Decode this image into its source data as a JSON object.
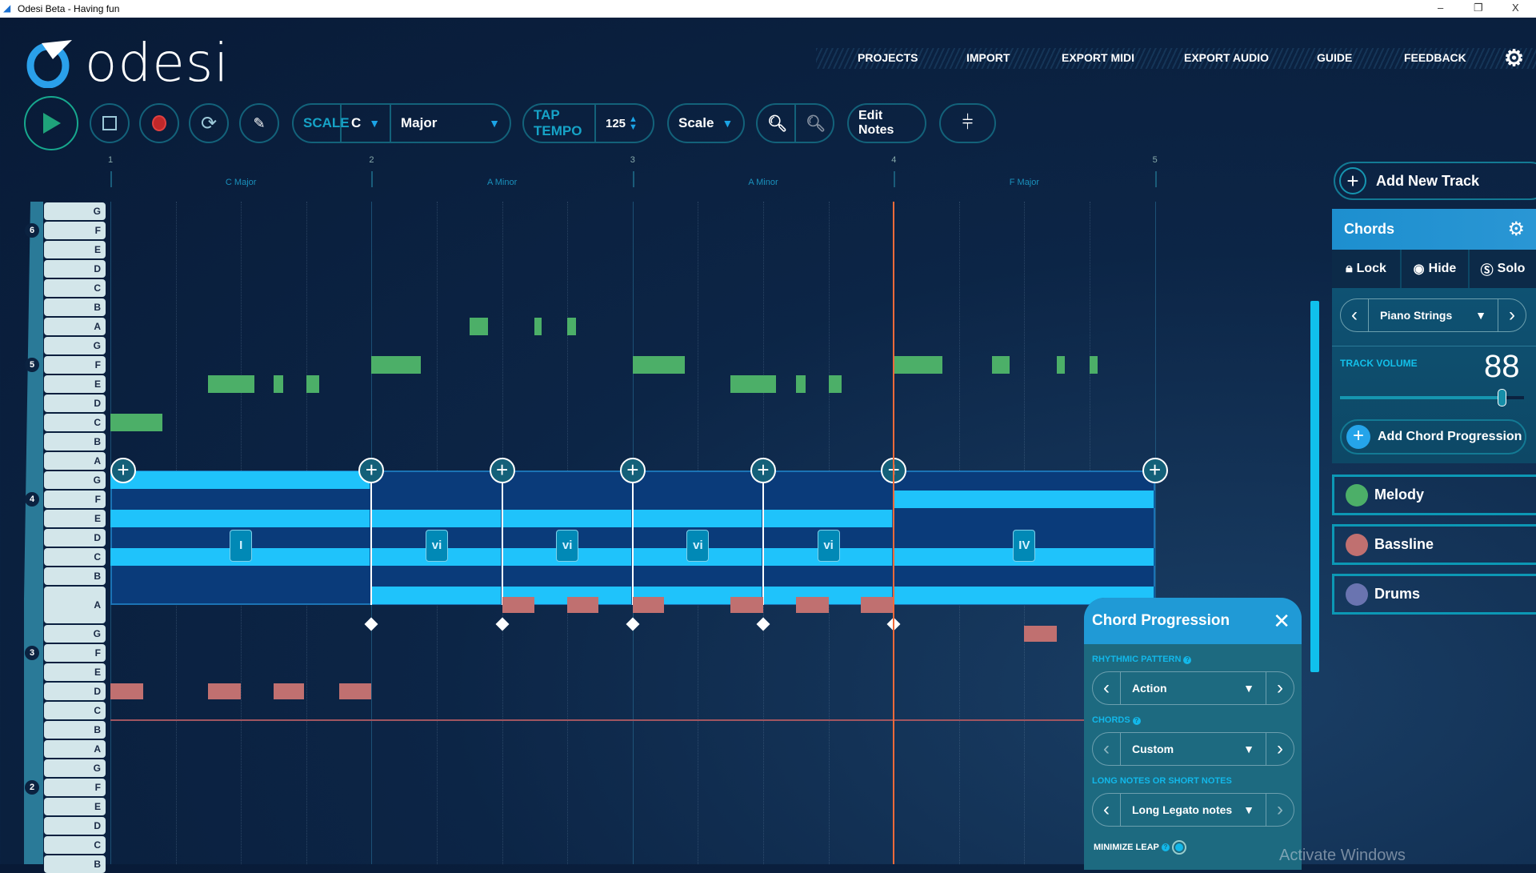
{
  "window": {
    "title": "Odesi Beta - Having fun",
    "minimize": "–",
    "restore": "❐",
    "close": "X"
  },
  "logo": {
    "text": "odesi"
  },
  "nav": [
    "PROJECTS",
    "IMPORT",
    "EXPORT MIDI",
    "EXPORT AUDIO",
    "GUIDE",
    "FEEDBACK"
  ],
  "toolbar": {
    "scale_label": "SCALE",
    "key": "C",
    "mode": "Major",
    "tap_tempo_label": "TAP TEMPO",
    "tempo": "125",
    "view": "Scale",
    "edit_notes": "Edit Notes"
  },
  "ruler": {
    "bars": [
      "1",
      "2",
      "3",
      "4",
      "5"
    ],
    "chords": [
      "C Major",
      "A Minor",
      "A Minor",
      "F Major"
    ]
  },
  "keys": {
    "octave_labels": [
      {
        "label": "6",
        "row": 1
      },
      {
        "label": "5",
        "row": 8
      },
      {
        "label": "4",
        "row": 15
      },
      {
        "label": "3",
        "row": 22
      },
      {
        "label": "2",
        "row": 29
      }
    ],
    "rows": [
      "G",
      "F",
      "E",
      "D",
      "C",
      "B",
      "A",
      "G",
      "F",
      "E",
      "D",
      "C",
      "B",
      "A",
      "G",
      "F",
      "E",
      "D",
      "C",
      "B",
      "A",
      "G",
      "F",
      "E",
      "D",
      "C",
      "B",
      "A",
      "G",
      "F",
      "E",
      "D",
      "C",
      "B"
    ]
  },
  "colors": {
    "melody": "#4caf68",
    "bassline": "#c07070",
    "drums": "#6a74b0",
    "chord_stripe": "#1fc3fb",
    "chord_bg": "#0a3b7a",
    "playhead": "#f06a3a",
    "accent": "#1ba4e6"
  },
  "playhead_beat": 12,
  "melody_notes": [
    {
      "row": 11,
      "start": 0,
      "len": 0.8
    },
    {
      "row": 9,
      "start": 1.5,
      "len": 0.7
    },
    {
      "row": 9,
      "start": 2.5,
      "len": 0.15
    },
    {
      "row": 9,
      "start": 3,
      "len": 0.2
    },
    {
      "row": 8,
      "start": 4,
      "len": 0.75
    },
    {
      "row": 6,
      "start": 5.5,
      "len": 0.28
    },
    {
      "row": 6,
      "start": 6.5,
      "len": 0.1
    },
    {
      "row": 6,
      "start": 7,
      "len": 0.13
    },
    {
      "row": 8,
      "start": 8,
      "len": 0.8
    },
    {
      "row": 9,
      "start": 9.5,
      "len": 0.7
    },
    {
      "row": 9,
      "start": 10.5,
      "len": 0.15
    },
    {
      "row": 9,
      "start": 11,
      "len": 0.2
    },
    {
      "row": 8,
      "start": 12,
      "len": 0.74
    },
    {
      "row": 8,
      "start": 13.5,
      "len": 0.28
    },
    {
      "row": 8,
      "start": 14.5,
      "len": 0.12
    },
    {
      "row": 8,
      "start": 15,
      "len": 0.12
    }
  ],
  "bass_notes": [
    {
      "row": 25,
      "start": 0,
      "len": 0.5
    },
    {
      "row": 25,
      "start": 1.5,
      "len": 0.5
    },
    {
      "row": 25,
      "start": 2.5,
      "len": 0.47
    },
    {
      "row": 25,
      "start": 3.5,
      "len": 0.5
    },
    {
      "row": 20.5,
      "start": 6,
      "len": 0.5
    },
    {
      "row": 20.5,
      "start": 7,
      "len": 0.47
    },
    {
      "row": 20.5,
      "start": 8,
      "len": 0.48
    },
    {
      "row": 20.5,
      "start": 9.5,
      "len": 0.5
    },
    {
      "row": 20.5,
      "start": 10.5,
      "len": 0.5
    },
    {
      "row": 20.5,
      "start": 11.5,
      "len": 0.5
    },
    {
      "row": 22,
      "start": 14,
      "len": 0.5
    }
  ],
  "chords": [
    {
      "symbol": "I",
      "start": 0,
      "len": 4,
      "rows": [
        14,
        16,
        18
      ]
    },
    {
      "symbol": "vi",
      "start": 4,
      "len": 2,
      "rows": [
        16,
        18,
        20
      ]
    },
    {
      "symbol": "vi",
      "start": 6,
      "len": 2,
      "rows": [
        16,
        18,
        20
      ]
    },
    {
      "symbol": "vi",
      "start": 8,
      "len": 2,
      "rows": [
        16,
        18,
        20
      ]
    },
    {
      "symbol": "vi",
      "start": 10,
      "len": 2,
      "rows": [
        16,
        18,
        20
      ]
    },
    {
      "symbol": "IV",
      "start": 12,
      "len": 4,
      "rows": [
        15,
        18,
        20
      ]
    }
  ],
  "chord_handles": [
    0,
    4,
    6,
    8,
    10,
    12,
    16
  ],
  "side": {
    "add_track": "Add New Track",
    "chords_title": "Chords",
    "lock": "Lock",
    "hide": "Hide",
    "solo": "Solo",
    "instrument": "Piano Strings",
    "track_volume_label": "TRACK VOLUME",
    "track_volume": "88",
    "volume_fraction": 0.88,
    "add_chord_progression": "Add Chord Progression",
    "tracks": [
      {
        "name": "Melody",
        "color": "#4caf68"
      },
      {
        "name": "Bassline",
        "color": "#c07070"
      },
      {
        "name": "Drums",
        "color": "#6a74b0"
      }
    ]
  },
  "chord_panel": {
    "title": "Chord Progression",
    "rhythmic_label": "RHYTHMIC PATTERN",
    "rhythmic": "Action",
    "chords_label": "CHORDS",
    "chords": "Custom",
    "notes_label": "LONG NOTES OR SHORT NOTES",
    "notes": "Long Legato notes",
    "minimize_leap": "MINIMIZE LEAP"
  },
  "watermark": "Activate Windows"
}
